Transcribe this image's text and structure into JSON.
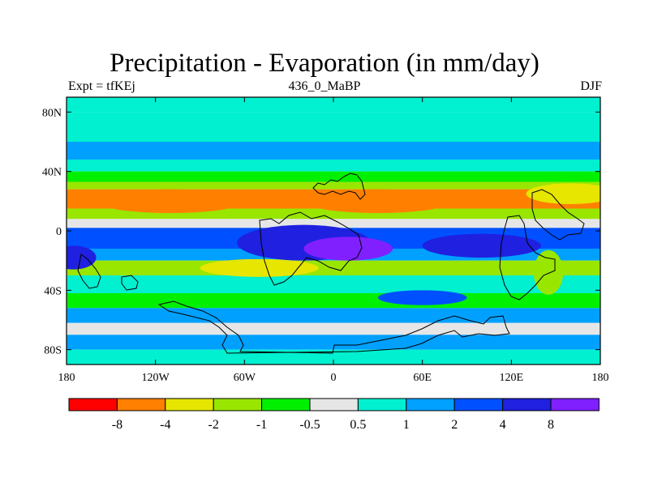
{
  "title": "Precipitation - Evaporation (in mm/day)",
  "subtitle_left": "Expt = tfKEj",
  "subtitle_center": "436_0_MaBP",
  "subtitle_right": "DJF",
  "chart_data": {
    "type": "heatmap",
    "title": "Precipitation - Evaporation (in mm/day)",
    "x_range": [
      -180,
      180
    ],
    "y_range": [
      -90,
      90
    ],
    "x_ticks": [
      {
        "value": -180,
        "label": "180"
      },
      {
        "value": -120,
        "label": "120W"
      },
      {
        "value": -60,
        "label": "60W"
      },
      {
        "value": 0,
        "label": "0"
      },
      {
        "value": 60,
        "label": "60E"
      },
      {
        "value": 120,
        "label": "120E"
      },
      {
        "value": 180,
        "label": "180"
      }
    ],
    "y_ticks": [
      {
        "value": 80,
        "label": "80N"
      },
      {
        "value": 40,
        "label": "40N"
      },
      {
        "value": 0,
        "label": "0"
      },
      {
        "value": -40,
        "label": "40S"
      },
      {
        "value": -80,
        "label": "80S"
      }
    ],
    "colorbar": {
      "colors": [
        "#ff0000",
        "#ff8000",
        "#e6e600",
        "#99e600",
        "#00f000",
        "#e6e6e6",
        "#00f0d0",
        "#00a0ff",
        "#0050ff",
        "#2020e0",
        "#8020ff"
      ],
      "labels": [
        "-8",
        "-4",
        "-2",
        "-1",
        "-0.5",
        "0.5",
        "1",
        "2",
        "4",
        "8"
      ]
    },
    "bands": [
      {
        "lat_top": 90,
        "lat_bottom": 80,
        "class": 6
      },
      {
        "lat_top": 80,
        "lat_bottom": 60,
        "class": 6
      },
      {
        "lat_top": 60,
        "lat_bottom": 48,
        "class": 7
      },
      {
        "lat_top": 48,
        "lat_bottom": 40,
        "class": 6
      },
      {
        "lat_top": 40,
        "lat_bottom": 33,
        "class": 4
      },
      {
        "lat_top": 33,
        "lat_bottom": 28,
        "class": 3
      },
      {
        "lat_top": 28,
        "lat_bottom": 15,
        "class": 1
      },
      {
        "lat_top": 15,
        "lat_bottom": 8,
        "class": 3
      },
      {
        "lat_top": 8,
        "lat_bottom": 2,
        "class": 5
      },
      {
        "lat_top": 2,
        "lat_bottom": -12,
        "class": 8
      },
      {
        "lat_top": -12,
        "lat_bottom": -20,
        "class": 7
      },
      {
        "lat_top": -20,
        "lat_bottom": -30,
        "class": 3
      },
      {
        "lat_top": -30,
        "lat_bottom": -42,
        "class": 6
      },
      {
        "lat_top": -42,
        "lat_bottom": -52,
        "class": 4
      },
      {
        "lat_top": -52,
        "lat_bottom": -62,
        "class": 7
      },
      {
        "lat_top": -62,
        "lat_bottom": -70,
        "class": 5
      },
      {
        "lat_top": -70,
        "lat_bottom": -80,
        "class": 7
      },
      {
        "lat_top": -80,
        "lat_bottom": -90,
        "class": 6
      }
    ],
    "patches": [
      {
        "lon": -20,
        "lat": -8,
        "rx": 45,
        "ry": 12,
        "class": 9
      },
      {
        "lon": 10,
        "lat": -12,
        "rx": 30,
        "ry": 8,
        "class": 10
      },
      {
        "lon": 100,
        "lat": -10,
        "rx": 40,
        "ry": 8,
        "class": 9
      },
      {
        "lon": -110,
        "lat": 20,
        "rx": 50,
        "ry": 8,
        "class": 1
      },
      {
        "lon": 160,
        "lat": 25,
        "rx": 30,
        "ry": 7,
        "class": 2
      },
      {
        "lon": -50,
        "lat": -25,
        "rx": 40,
        "ry": 6,
        "class": 2
      },
      {
        "lon": 30,
        "lat": 20,
        "rx": 50,
        "ry": 8,
        "class": 1
      },
      {
        "lon": -175,
        "lat": -18,
        "rx": 15,
        "ry": 8,
        "class": 9
      },
      {
        "lon": 145,
        "lat": -28,
        "rx": 10,
        "ry": 15,
        "class": 3
      },
      {
        "lon": 60,
        "lat": -45,
        "rx": 30,
        "ry": 5,
        "class": 8
      }
    ]
  }
}
